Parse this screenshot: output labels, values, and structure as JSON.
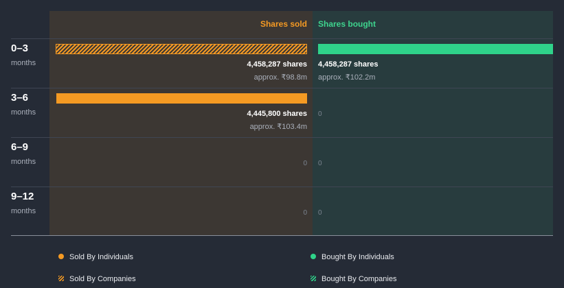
{
  "colors": {
    "sold": "#f59a23",
    "bought": "#2fd38a",
    "panel_sold": "#3c3733",
    "panel_bought": "#283c3e",
    "background": "#252b36"
  },
  "chart_data": {
    "type": "bar",
    "orientation": "horizontal-diverging",
    "column_headers": {
      "sold": "Shares sold",
      "bought": "Shares bought"
    },
    "max_shares": 4458287,
    "periods": [
      {
        "label": "0–3",
        "unit": "months",
        "sold": {
          "by": "companies",
          "shares": 4458287,
          "shares_text": "4,458,287 shares",
          "approx_text": "approx. ₹98.8m"
        },
        "bought": {
          "by": "individuals",
          "shares": 4458287,
          "shares_text": "4,458,287 shares",
          "approx_text": "approx. ₹102.2m"
        }
      },
      {
        "label": "3–6",
        "unit": "months",
        "sold": {
          "by": "individuals",
          "shares": 4445800,
          "shares_text": "4,445,800 shares",
          "approx_text": "approx. ₹103.4m"
        },
        "bought": {
          "shares": 0,
          "zero_text": "0"
        }
      },
      {
        "label": "6–9",
        "unit": "months",
        "sold": {
          "shares": 0,
          "zero_text": "0"
        },
        "bought": {
          "shares": 0,
          "zero_text": "0"
        }
      },
      {
        "label": "9–12",
        "unit": "months",
        "sold": {
          "shares": 0,
          "zero_text": "0"
        },
        "bought": {
          "shares": 0,
          "zero_text": "0"
        }
      }
    ],
    "legend": [
      {
        "label": "Sold By Individuals",
        "marker": "dot",
        "color": "#f59a23"
      },
      {
        "label": "Bought By Individuals",
        "marker": "dot",
        "color": "#2fd38a"
      },
      {
        "label": "Sold By Companies",
        "marker": "hatch",
        "color": "#f59a23"
      },
      {
        "label": "Bought By Companies",
        "marker": "hatch",
        "color": "#2fd38a"
      }
    ],
    "legend_placement": "bottom"
  }
}
